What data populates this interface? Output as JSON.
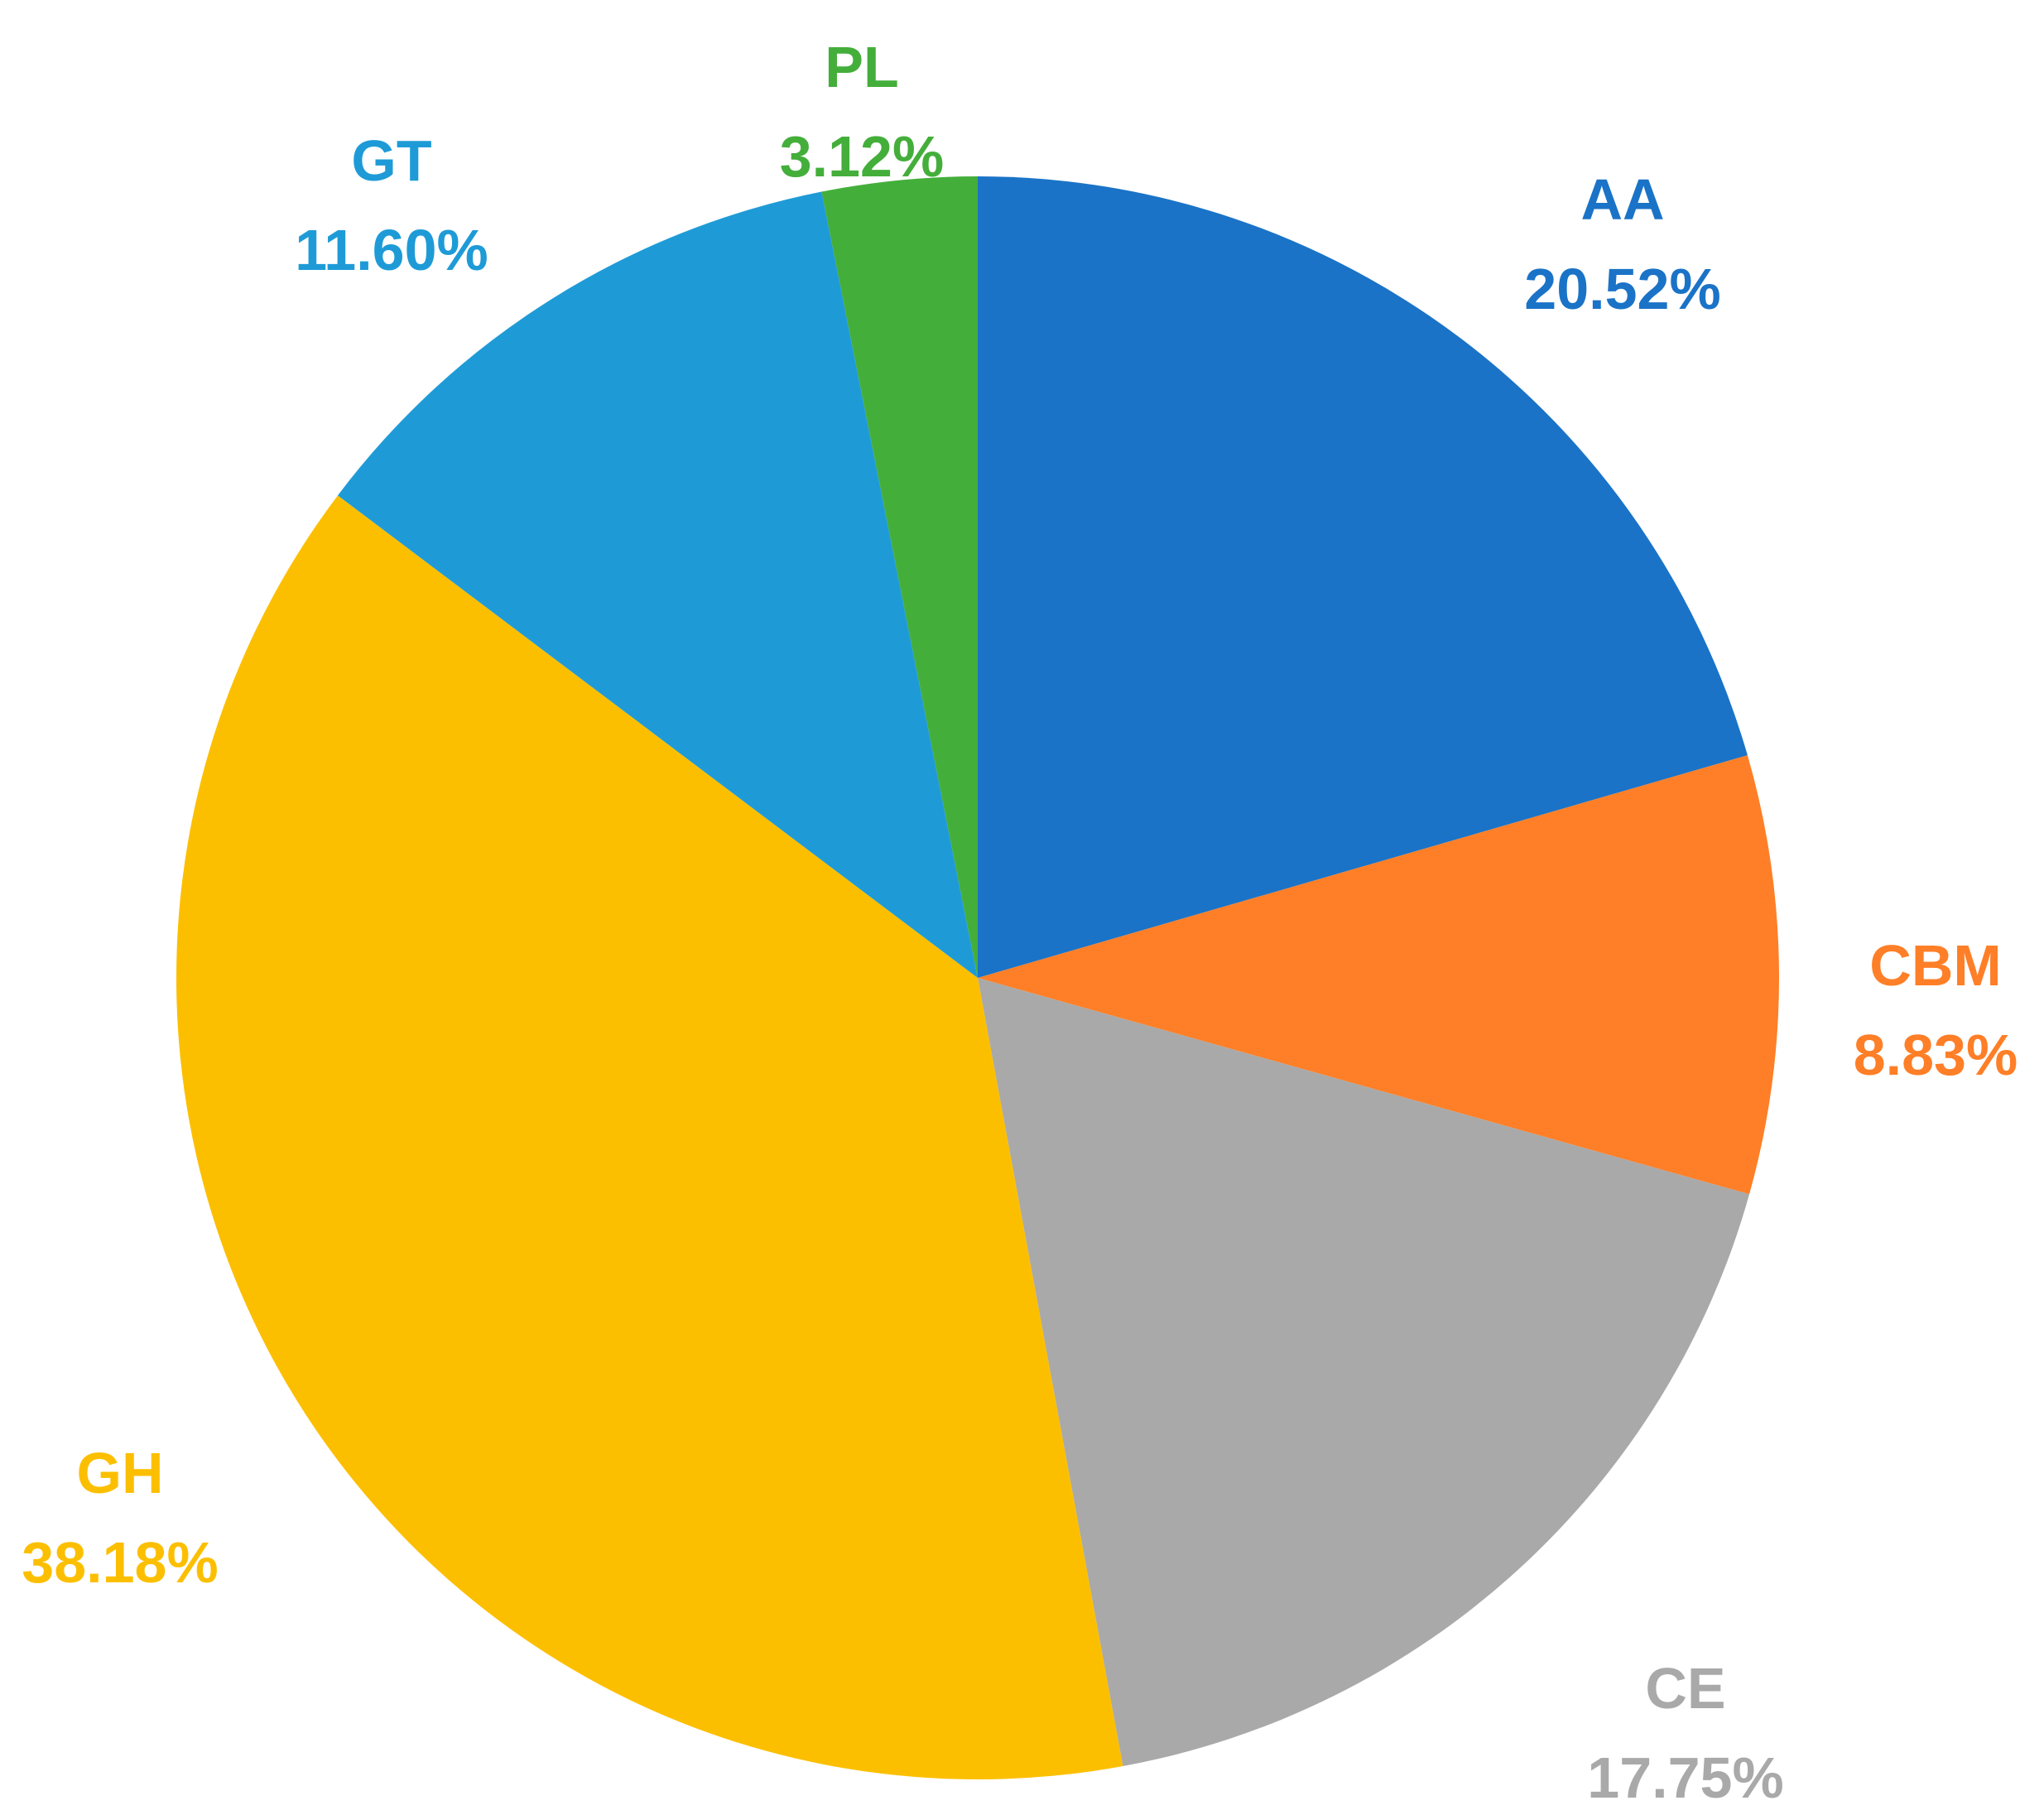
{
  "chart_data": {
    "type": "pie",
    "title": "",
    "start_angle_deg": 0,
    "direction": "clockwise",
    "slices": [
      {
        "label": "AA",
        "value": 20.52,
        "value_text": "20.52%",
        "color": "#1a73c7"
      },
      {
        "label": "CBM",
        "value": 8.83,
        "value_text": "8.83%",
        "color": "#fe7f27"
      },
      {
        "label": "CE",
        "value": 17.75,
        "value_text": "17.75%",
        "color": "#a9a9a9"
      },
      {
        "label": "GH",
        "value": 38.18,
        "value_text": "38.18%",
        "color": "#fcbf00"
      },
      {
        "label": "GT",
        "value": 11.6,
        "value_text": "11.60%",
        "color": "#1e9bd7"
      },
      {
        "label": "PL",
        "value": 3.12,
        "value_text": "3.12%",
        "color": "#44ae3b"
      }
    ],
    "legend": "none",
    "labels": "outside"
  }
}
